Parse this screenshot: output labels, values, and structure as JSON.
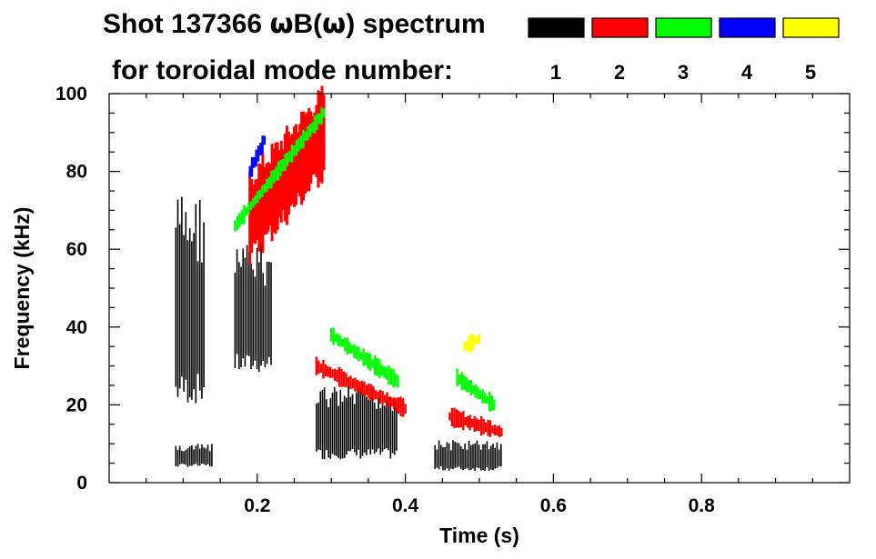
{
  "chart_data": {
    "type": "heatmap",
    "title_line1_prefix": "Shot 137366 ",
    "title_line1_sym1": "ω",
    "title_line1_mid": "B(",
    "title_line1_sym2": "ω",
    "title_line1_suffix": ") spectrum",
    "title_line2": "for toroidal mode number:",
    "xlabel": "Time (s)",
    "ylabel": "Frequency (kHz)",
    "xlim": [
      0.0,
      1.0
    ],
    "ylim": [
      0,
      100
    ],
    "x_ticks": [
      0.2,
      0.4,
      0.6,
      0.8
    ],
    "x_tick_labels": [
      "0.2",
      "0.4",
      "0.6",
      "0.8"
    ],
    "y_ticks": [
      0,
      20,
      40,
      60,
      80,
      100
    ],
    "y_tick_labels": [
      "0",
      "20",
      "40",
      "60",
      "80",
      "100"
    ],
    "legend": [
      {
        "label": "1",
        "color": "#000000"
      },
      {
        "label": "2",
        "color": "#ff0000"
      },
      {
        "label": "3",
        "color": "#00ff00"
      },
      {
        "label": "4",
        "color": "#0000ff"
      },
      {
        "label": "5",
        "color": "#ffff00"
      }
    ],
    "features": [
      {
        "mode": 1,
        "t": [
          0.09,
          0.13
        ],
        "f": [
          20,
          75
        ],
        "kind": "comb"
      },
      {
        "mode": 1,
        "t": [
          0.17,
          0.22
        ],
        "f": [
          28,
          62
        ],
        "kind": "comb"
      },
      {
        "mode": 1,
        "t": [
          0.09,
          0.14
        ],
        "f": [
          4,
          10
        ],
        "kind": "comb"
      },
      {
        "mode": 1,
        "t": [
          0.28,
          0.39
        ],
        "f": [
          6,
          25
        ],
        "kind": "comb"
      },
      {
        "mode": 1,
        "t": [
          0.44,
          0.53
        ],
        "f": [
          3,
          11
        ],
        "kind": "comb"
      },
      {
        "mode": 2,
        "t": [
          0.19,
          0.29
        ],
        "f": [
          68,
          90
        ],
        "kind": "band"
      },
      {
        "mode": 2,
        "t": [
          0.28,
          0.4
        ],
        "f": [
          30,
          19
        ],
        "kind": "chirp"
      },
      {
        "mode": 2,
        "t": [
          0.46,
          0.53
        ],
        "f": [
          17,
          13
        ],
        "kind": "chirp"
      },
      {
        "mode": 3,
        "t": [
          0.17,
          0.29
        ],
        "f": [
          66,
          95
        ],
        "kind": "chirp"
      },
      {
        "mode": 3,
        "t": [
          0.3,
          0.39
        ],
        "f": [
          38,
          26
        ],
        "kind": "chirp"
      },
      {
        "mode": 3,
        "t": [
          0.47,
          0.52
        ],
        "f": [
          27,
          20
        ],
        "kind": "chirp"
      },
      {
        "mode": 4,
        "t": [
          0.19,
          0.21
        ],
        "f": [
          80,
          88
        ],
        "kind": "chirp"
      },
      {
        "mode": 5,
        "t": [
          0.48,
          0.5
        ],
        "f": [
          35,
          37
        ],
        "kind": "chirp"
      }
    ]
  }
}
